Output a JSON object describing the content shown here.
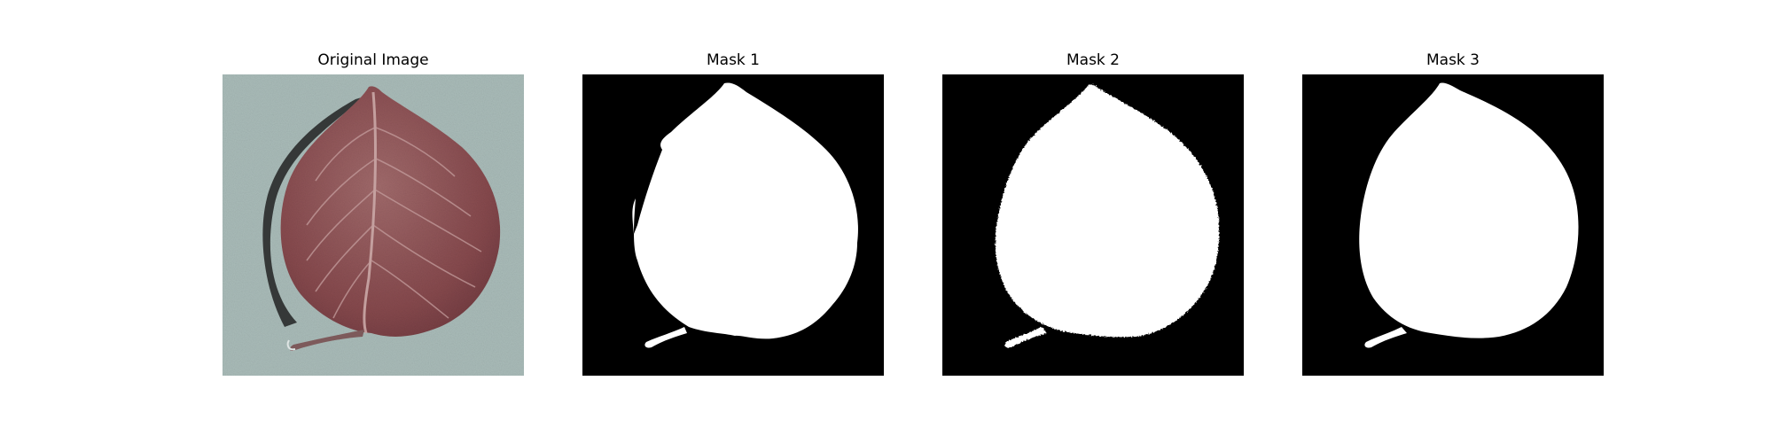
{
  "panels": [
    {
      "title": "Original Image",
      "kind": "photo"
    },
    {
      "title": "Mask 1",
      "kind": "mask"
    },
    {
      "title": "Mask 2",
      "kind": "mask"
    },
    {
      "title": "Mask 3",
      "kind": "mask"
    }
  ],
  "colors": {
    "background_photo": "#a9bbb8",
    "leaf": "#8a5254",
    "leaf_vein": "#caa7a6",
    "leaf_shadow": "#2b2e2e",
    "mask_background": "#000000",
    "mask_foreground": "#ffffff"
  }
}
